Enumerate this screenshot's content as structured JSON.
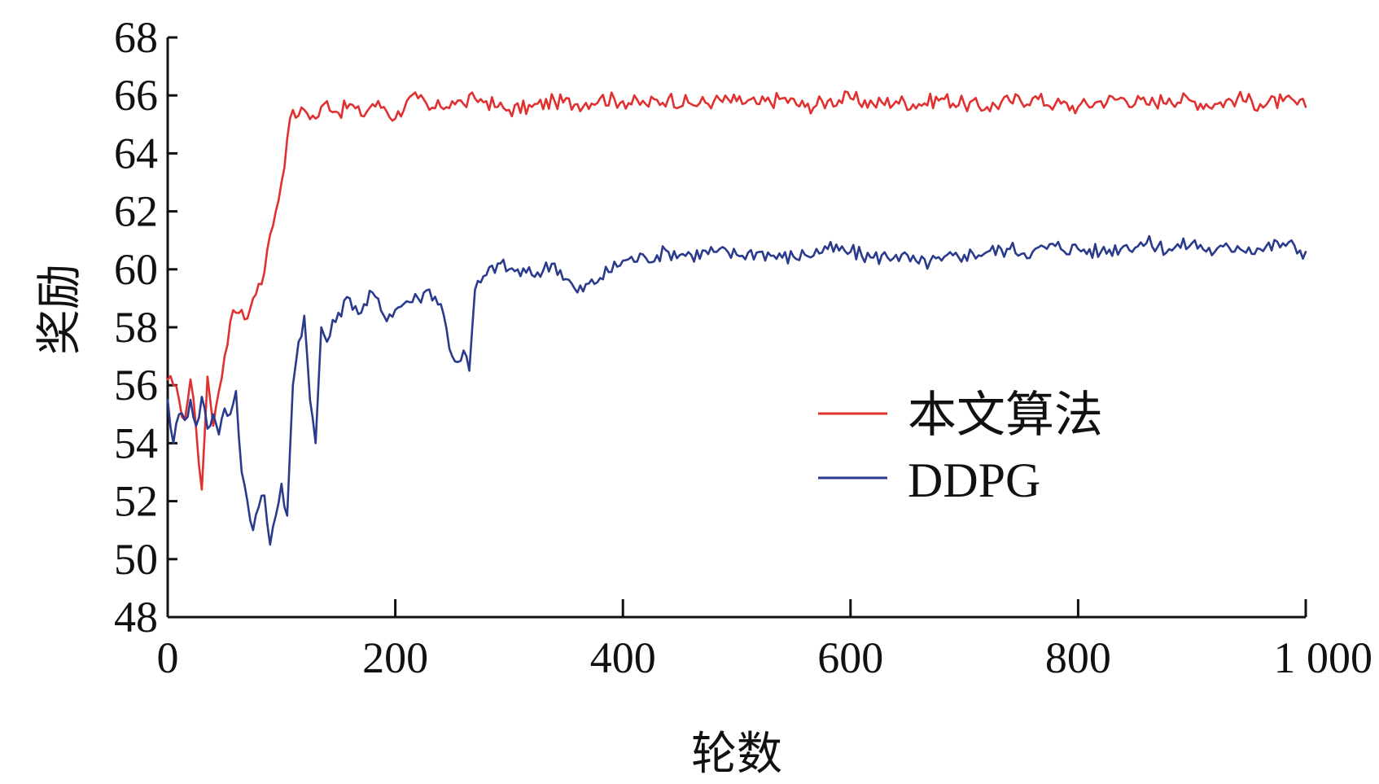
{
  "chart_data": {
    "type": "line",
    "title": "",
    "xlabel": "轮数",
    "ylabel": "奖励",
    "xlim": [
      0,
      1000
    ],
    "ylim": [
      48,
      68
    ],
    "x_ticks": [
      0,
      200,
      400,
      600,
      800,
      1000
    ],
    "x_tick_labels": [
      "0",
      "200",
      "400",
      "600",
      "800",
      "1 000"
    ],
    "y_ticks": [
      48,
      50,
      52,
      54,
      56,
      58,
      60,
      62,
      64,
      66,
      68
    ],
    "y_tick_labels": [
      "48",
      "50",
      "52",
      "54",
      "56",
      "58",
      "60",
      "62",
      "64",
      "66",
      "68"
    ],
    "grid": false,
    "legend_position": "center-right",
    "series": [
      {
        "name": "本文算法",
        "color": "#e03030",
        "x": [
          0,
          5,
          10,
          15,
          20,
          25,
          30,
          35,
          40,
          45,
          50,
          55,
          60,
          65,
          70,
          75,
          80,
          85,
          90,
          95,
          100,
          105,
          110,
          115,
          120,
          130,
          140,
          150,
          160,
          170,
          180,
          190,
          200,
          210,
          220,
          230,
          240,
          250,
          260,
          270,
          280,
          290,
          300,
          320,
          340,
          360,
          380,
          400,
          420,
          440,
          460,
          480,
          500,
          520,
          540,
          560,
          580,
          600,
          620,
          640,
          660,
          680,
          700,
          720,
          740,
          760,
          780,
          800,
          820,
          840,
          860,
          880,
          900,
          920,
          940,
          960,
          980,
          1000
        ],
        "values": [
          56.2,
          56.0,
          55.5,
          54.8,
          56.2,
          54.5,
          52.4,
          56.3,
          54.6,
          55.8,
          57.0,
          58.2,
          58.5,
          58.6,
          58.3,
          59.0,
          59.5,
          59.9,
          61.2,
          62.0,
          63.0,
          64.5,
          65.5,
          65.3,
          65.5,
          65.2,
          65.8,
          65.4,
          65.7,
          65.3,
          65.7,
          65.6,
          65.2,
          65.8,
          65.9,
          65.5,
          65.6,
          65.8,
          65.7,
          65.9,
          65.8,
          65.6,
          65.5,
          65.6,
          65.8,
          65.7,
          65.9,
          65.8,
          65.7,
          65.9,
          65.7,
          65.8,
          65.8,
          65.7,
          65.9,
          65.6,
          65.8,
          65.9,
          65.7,
          65.8,
          65.7,
          65.9,
          65.7,
          65.6,
          65.8,
          65.9,
          65.7,
          65.6,
          65.8,
          65.9,
          65.7,
          65.9,
          65.8,
          65.7,
          65.9,
          65.7,
          65.8,
          65.6
        ]
      },
      {
        "name": "DDPG",
        "color": "#2a3a8c",
        "x": [
          0,
          5,
          10,
          15,
          20,
          25,
          30,
          35,
          40,
          45,
          50,
          55,
          60,
          65,
          70,
          75,
          80,
          85,
          90,
          95,
          100,
          105,
          110,
          115,
          120,
          125,
          130,
          135,
          140,
          150,
          160,
          170,
          180,
          190,
          200,
          210,
          220,
          230,
          240,
          250,
          255,
          260,
          265,
          270,
          280,
          290,
          300,
          320,
          340,
          360,
          380,
          400,
          420,
          440,
          460,
          480,
          500,
          520,
          540,
          560,
          580,
          600,
          620,
          640,
          660,
          680,
          700,
          720,
          740,
          760,
          780,
          800,
          820,
          840,
          860,
          880,
          900,
          920,
          940,
          960,
          980,
          1000
        ],
        "values": [
          55.5,
          54.0,
          55.0,
          54.8,
          55.5,
          54.6,
          55.6,
          54.5,
          55.0,
          54.3,
          55.2,
          55.0,
          55.8,
          53.0,
          52.0,
          51.0,
          51.8,
          52.2,
          50.5,
          51.5,
          52.6,
          51.5,
          56.0,
          57.5,
          58.4,
          55.5,
          54.0,
          58.0,
          57.5,
          58.5,
          59.0,
          58.5,
          59.2,
          58.4,
          58.6,
          58.9,
          59.0,
          59.3,
          58.8,
          57.0,
          56.8,
          57.2,
          56.5,
          59.3,
          59.8,
          60.2,
          60.0,
          59.8,
          60.2,
          59.2,
          59.7,
          60.3,
          60.4,
          60.6,
          60.5,
          60.6,
          60.5,
          60.6,
          60.4,
          60.5,
          60.7,
          60.6,
          60.4,
          60.5,
          60.2,
          60.3,
          60.5,
          60.6,
          60.7,
          60.6,
          60.8,
          60.7,
          60.6,
          60.8,
          60.9,
          60.7,
          60.9,
          60.6,
          60.8,
          60.7,
          60.9,
          60.6
        ]
      }
    ]
  }
}
